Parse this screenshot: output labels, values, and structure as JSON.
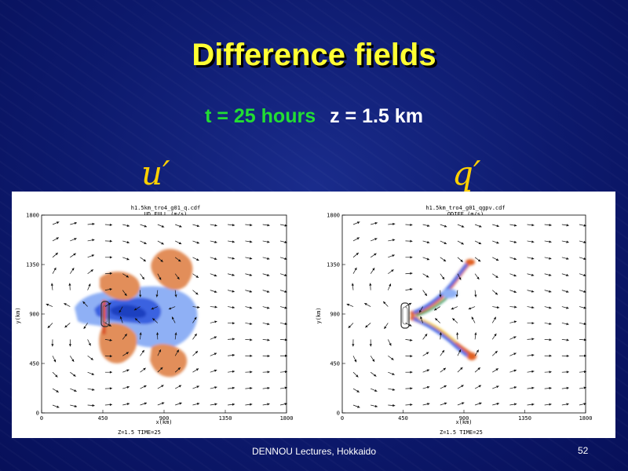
{
  "slide": {
    "title": "Difference fields",
    "subtitle_time": "t = 25 hours",
    "subtitle_height": "z = 1.5 km",
    "var_left": "u′",
    "var_right": "q′",
    "footer": "DENNOU Lectures, Hokkaido",
    "page_number": "52"
  },
  "plots": {
    "left": {
      "file": "h1.5km_tro4_g01_q.cdf",
      "field": "UD_FULL   (m/s)",
      "xlabel": "x(km)",
      "ylabel": "y(km)",
      "footer": "Z=1.5   TIME=25",
      "xticks": [
        "0",
        "450",
        "900",
        "1350",
        "1800"
      ],
      "yticks": [
        "0",
        "450",
        "900",
        "1350",
        "1800"
      ]
    },
    "right": {
      "file": "h1.5km_tro4_g01_qgpv.cdf",
      "field": "QDIFF  (m/s)",
      "xlabel": "x(km)",
      "ylabel": "y(km)",
      "footer": "Z=1.5   TIME=25",
      "xticks": [
        "0",
        "450",
        "900",
        "1350",
        "1800"
      ],
      "yticks": [
        "0",
        "450",
        "900",
        "1350",
        "1800"
      ]
    }
  },
  "colors": {
    "title": "#ffff33",
    "subtitle_time": "#22dd33",
    "subtitle_height": "#ffffff",
    "variable_labels": "#ffd000",
    "positive_contours": "#e07a3a",
    "negative_contours": "#4a6fe8"
  }
}
